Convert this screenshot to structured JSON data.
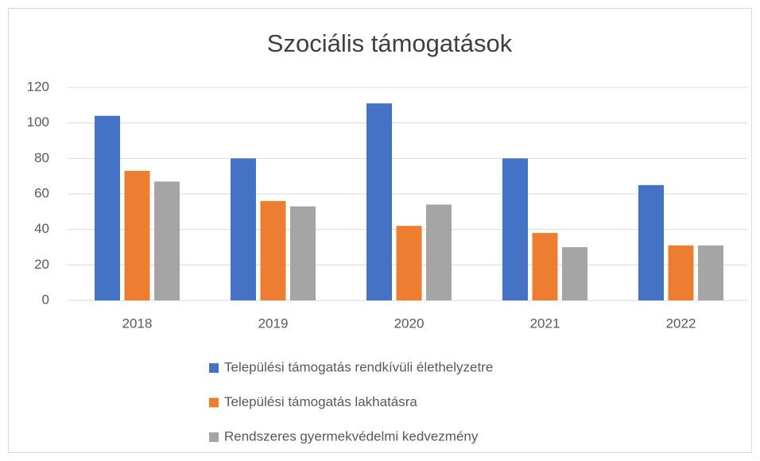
{
  "chart_data": {
    "type": "bar",
    "title": "Szociális támogatások",
    "categories": [
      "2018",
      "2019",
      "2020",
      "2021",
      "2022"
    ],
    "series": [
      {
        "name": "Települési támogatás rendkívüli élethelyzetre",
        "color": "#4472c4",
        "values": [
          104,
          80,
          111,
          80,
          65
        ]
      },
      {
        "name": "Települési támogatás lakhatásra",
        "color": "#ed7d31",
        "values": [
          73,
          56,
          42,
          38,
          31
        ]
      },
      {
        "name": "Rendszeres gyermekvédelmi kedvezmény",
        "color": "#a5a5a5",
        "values": [
          67,
          53,
          54,
          30,
          31
        ]
      }
    ],
    "ylim": [
      0,
      120
    ],
    "yticks": [
      0,
      20,
      40,
      60,
      80,
      100,
      120
    ],
    "grid": true,
    "legend": "bottom"
  }
}
